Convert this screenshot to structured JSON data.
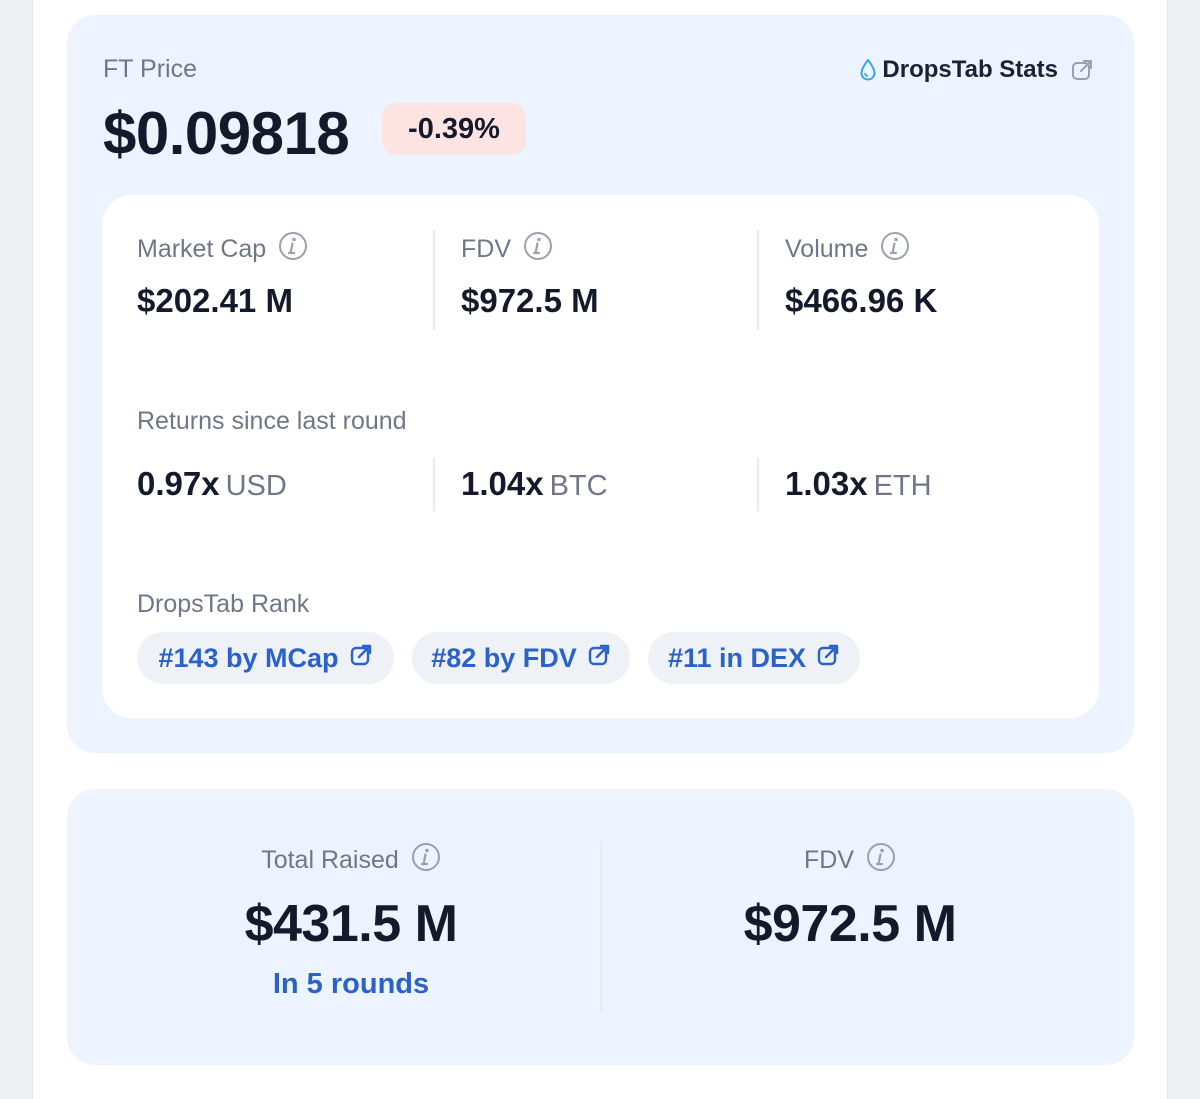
{
  "price": {
    "label": "FT Price",
    "value": "$0.09818",
    "change": "-0.39%",
    "stats_link": "DropsTab Stats"
  },
  "metrics": [
    {
      "label": "Market Cap",
      "value": "$202.41 M"
    },
    {
      "label": "FDV",
      "value": "$972.5 M"
    },
    {
      "label": "Volume",
      "value": "$466.96 K"
    }
  ],
  "returns": {
    "label": "Returns since last round",
    "items": [
      {
        "value": "0.97x",
        "unit": "USD"
      },
      {
        "value": "1.04x",
        "unit": "BTC"
      },
      {
        "value": "1.03x",
        "unit": "ETH"
      }
    ]
  },
  "rank": {
    "label": "DropsTab Rank",
    "items": [
      "#143 by MCap",
      "#82 by FDV",
      "#11 in DEX"
    ]
  },
  "raise": {
    "total_label": "Total Raised",
    "total_value": "$431.5 M",
    "rounds": "In 5 rounds",
    "fdv_label": "FDV",
    "fdv_value": "$972.5 M"
  },
  "colors": {
    "card_bg": "#edf4ff",
    "negative_badge": "#fde3e2",
    "link_blue": "#2a62c9",
    "drop_blue": "#35a7e8"
  }
}
